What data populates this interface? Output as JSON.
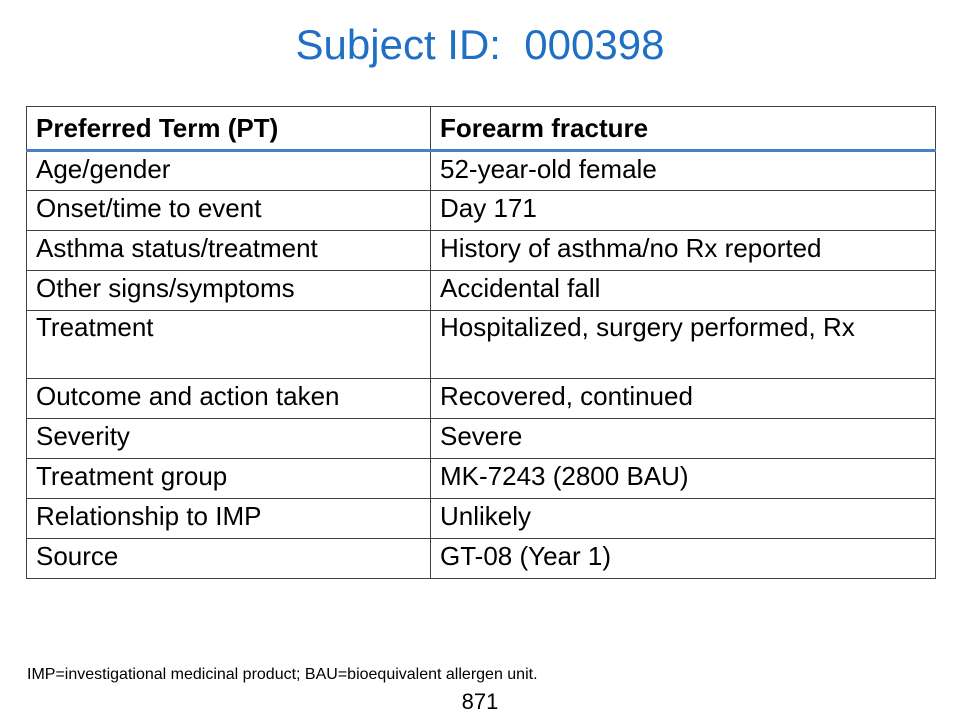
{
  "slide": {
    "title": "Subject ID:  000398",
    "title_color": "#1f6fc5",
    "header_rule_color": "#4a7fc8"
  },
  "table": {
    "header": {
      "label": "Preferred Term (PT)",
      "value": "Forearm fracture"
    },
    "rows": [
      {
        "label": "Age/gender",
        "value": "52-year-old female"
      },
      {
        "label": "Onset/time to event",
        "value": "Day 171"
      },
      {
        "label": "Asthma status/treatment",
        "value": "History of asthma/no Rx reported"
      },
      {
        "label": "Other signs/symptoms",
        "value": "Accidental fall"
      },
      {
        "label": "Treatment",
        "value": "Hospitalized, surgery performed, Rx"
      },
      {
        "label": "Outcome and action taken",
        "value": "Recovered, continued"
      },
      {
        "label": "Severity",
        "value": "Severe"
      },
      {
        "label": "Treatment group",
        "value": "MK-7243 (2800 BAU)"
      },
      {
        "label": "Relationship to IMP",
        "value": "Unlikely"
      },
      {
        "label": "Source",
        "value": "GT-08 (Year 1)"
      }
    ]
  },
  "footnote": "IMP=investigational medicinal product; BAU=bioequivalent allergen unit.",
  "page_number": "871"
}
